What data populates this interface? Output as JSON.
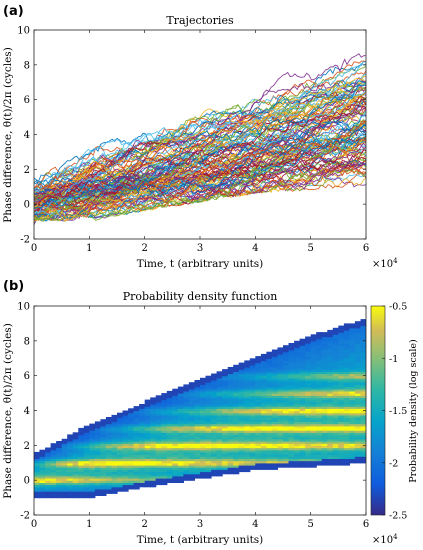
{
  "panels": [
    {
      "letter": "(a)"
    },
    {
      "letter": "(b)"
    }
  ],
  "chart_data": [
    {
      "type": "line",
      "title": "Trajectories",
      "xlabel": "Time, t (arbitrary units)",
      "ylabel": "Phase difference, θ(t)/2π (cycles)",
      "x_multiplier": "×10^4",
      "xlim": [
        0,
        6
      ],
      "ylim": [
        -2,
        10
      ],
      "xticks": [
        "0",
        "1",
        "2",
        "3",
        "4",
        "5",
        "6"
      ],
      "yticks": [
        "-2",
        "0",
        "2",
        "4",
        "6",
        "8",
        "10"
      ],
      "grid": false,
      "series_count": 120,
      "envelope": {
        "x": [
          0,
          1,
          2,
          3,
          4,
          5,
          6
        ],
        "lower": [
          -1.0,
          -1.0,
          -0.4,
          0.1,
          0.6,
          0.8,
          1.0
        ],
        "upper": [
          1.5,
          3.2,
          4.5,
          5.8,
          7.0,
          8.3,
          9.3
        ]
      },
      "mean_drift_cycles_per_1e4": 0.75
    },
    {
      "type": "heatmap",
      "title": "Probability density function",
      "xlabel": "Time, t (arbitrary units)",
      "ylabel": "Phase difference, θ(t)/2π (cycles)",
      "x_multiplier": "×10^4",
      "xlim": [
        0,
        6
      ],
      "ylim": [
        -2,
        10
      ],
      "xticks": [
        "0",
        "1",
        "2",
        "3",
        "4",
        "5",
        "6"
      ],
      "yticks": [
        "-2",
        "0",
        "2",
        "4",
        "6",
        "8",
        "10"
      ],
      "colorbar": {
        "label": "Probability density (log scale)",
        "range": [
          -2.5,
          -0.5
        ],
        "ticks": [
          "-0.5",
          "-1",
          "-1.5",
          "-2",
          "-2.5"
        ],
        "colormap": "parula"
      },
      "density_bands_cycles": [
        0,
        1,
        2,
        3,
        4,
        5,
        6
      ],
      "envelope": {
        "x": [
          0,
          1,
          2,
          3,
          4,
          5,
          6
        ],
        "lower": [
          -1.0,
          -1.0,
          -0.4,
          0.1,
          0.6,
          0.8,
          1.0
        ],
        "upper": [
          1.5,
          3.2,
          4.5,
          5.8,
          7.0,
          8.3,
          9.3
        ]
      }
    }
  ]
}
